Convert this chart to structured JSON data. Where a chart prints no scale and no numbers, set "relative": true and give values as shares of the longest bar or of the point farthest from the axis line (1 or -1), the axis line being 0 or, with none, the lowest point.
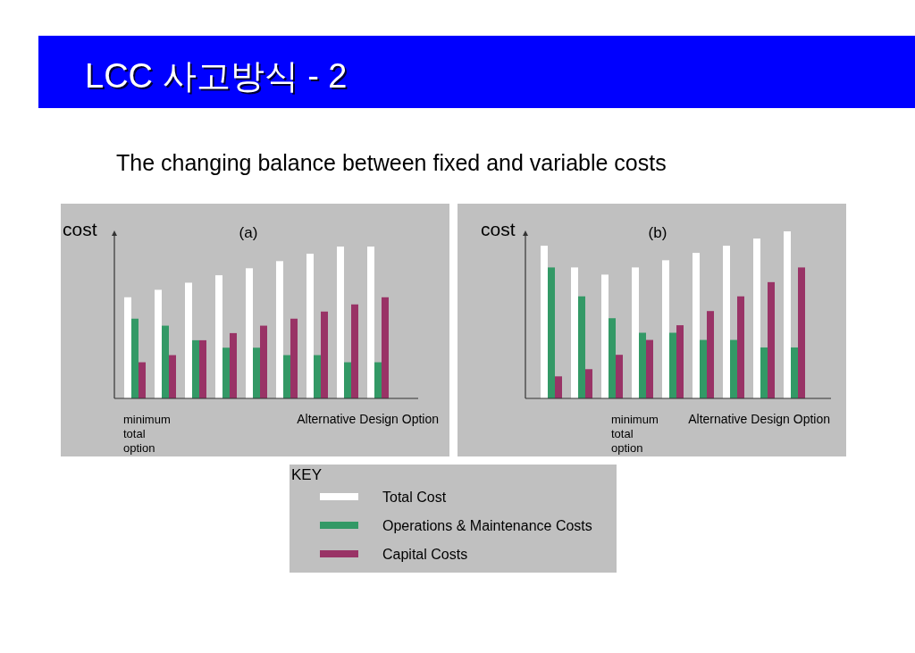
{
  "chart_data": [
    {
      "type": "bar",
      "title": "(a)",
      "ylabel": "cost",
      "xlabel": "Alternative Design Option",
      "relative": true,
      "legend": "bottom",
      "legend_title": "KEY",
      "annotations": [
        "LCC 사고방식 - 2",
        "The changing balance between fixed and variable costs",
        "minimum total option"
      ],
      "categories": [
        null,
        null,
        null,
        null,
        null,
        null,
        null,
        null,
        null
      ],
      "series": [
        {
          "name": "Total Cost",
          "color": "#ffffff",
          "values": [
            0.666,
            0.715,
            0.762,
            0.811,
            0.857,
            0.904,
            0.953,
            1,
            1
          ]
        },
        {
          "name": "Operations & Maintenance Costs",
          "color": "#339966",
          "values": [
            0.525,
            0.479,
            0.383,
            0.334,
            0.334,
            0.285,
            0.285,
            0.238,
            0.238
          ]
        },
        {
          "name": "Capital Costs",
          "color": "#993366",
          "values": [
            0.238,
            0.285,
            0.383,
            0.43,
            0.479,
            0.525,
            0.572,
            0.619,
            0.666
          ]
        }
      ]
    },
    {
      "type": "bar",
      "title": "(b)",
      "ylabel": "cost",
      "xlabel": "Alternative Design Option",
      "relative": true,
      "annotations": [
        "minimum total option"
      ],
      "categories": [
        null,
        null,
        null,
        null,
        null,
        null,
        null,
        null,
        null
      ],
      "series": [
        {
          "name": "Total Cost",
          "color": "#ffffff",
          "values": [
            0.914,
            0.784,
            0.741,
            0.784,
            0.827,
            0.871,
            0.914,
            0.957,
            1
          ]
        },
        {
          "name": "Operations & Maintenance Costs",
          "color": "#339966",
          "values": [
            0.784,
            0.611,
            0.48,
            0.393,
            0.393,
            0.35,
            0.35,
            0.305,
            0.305
          ]
        },
        {
          "name": "Capital Costs",
          "color": "#993366",
          "values": [
            0.132,
            0.175,
            0.261,
            0.35,
            0.438,
            0.523,
            0.611,
            0.696,
            0.784
          ]
        }
      ]
    }
  ]
}
